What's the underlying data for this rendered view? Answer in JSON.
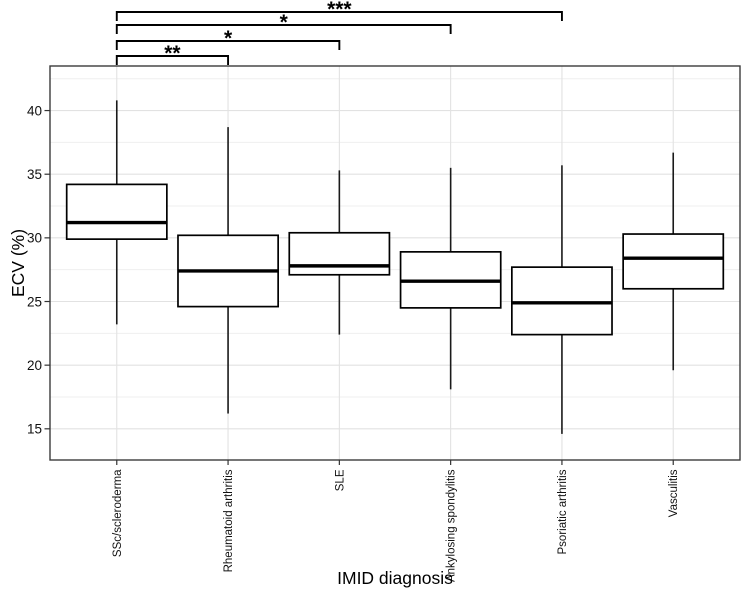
{
  "figure": {
    "background": "#ffffff"
  },
  "chart_data": {
    "type": "box",
    "title": "",
    "xlabel": "IMID diagnosis",
    "ylabel": "ECV (%)",
    "categories": [
      "SSc/scleroderma",
      "Rheumatoid arthritis",
      "SLE",
      "Ankylosing spondylitis",
      "Psoriatic arthritis",
      "Vasculitis"
    ],
    "yticks": [
      15,
      20,
      25,
      30,
      35,
      40
    ],
    "ylim": [
      12.55,
      43.5
    ],
    "minor_grid_step": 2.5,
    "grid": true,
    "legend": "none",
    "boxes": [
      {
        "category": "SSc/scleroderma",
        "whisker_low": 23.2,
        "q1": 29.9,
        "median": 31.2,
        "q3": 34.2,
        "whisker_high": 40.8
      },
      {
        "category": "Rheumatoid arthritis",
        "whisker_low": 16.2,
        "q1": 24.6,
        "median": 27.4,
        "q3": 30.2,
        "whisker_high": 38.7
      },
      {
        "category": "SLE",
        "whisker_low": 22.4,
        "q1": 27.1,
        "median": 27.8,
        "q3": 30.4,
        "whisker_high": 35.3
      },
      {
        "category": "Ankylosing spondylitis",
        "whisker_low": 18.1,
        "q1": 24.5,
        "median": 26.6,
        "q3": 28.9,
        "whisker_high": 35.5
      },
      {
        "category": "Psoriatic arthritis",
        "whisker_low": 14.6,
        "q1": 22.4,
        "median": 24.9,
        "q3": 27.7,
        "whisker_high": 35.7
      },
      {
        "category": "Vasculitis",
        "whisker_low": 19.6,
        "q1": 26.0,
        "median": 28.4,
        "q3": 30.3,
        "whisker_high": 36.7
      }
    ],
    "significance_brackets": [
      {
        "from": "SSc/scleroderma",
        "to": "Rheumatoid arthritis",
        "label": "**"
      },
      {
        "from": "SSc/scleroderma",
        "to": "SLE",
        "label": "*"
      },
      {
        "from": "SSc/scleroderma",
        "to": "Ankylosing spondylitis",
        "label": "*"
      },
      {
        "from": "SSc/scleroderma",
        "to": "Psoriatic arthritis",
        "label": "***"
      }
    ],
    "colors": {
      "box_stroke": "#000000",
      "box_fill": "#ffffff",
      "median": "#000000",
      "whisker": "#1a1a1a",
      "grid_major": "#e2e2e2",
      "grid_minor": "#efefef",
      "panel_border": "#3b3b3b",
      "tick": "#333333",
      "bracket": "#000000"
    }
  }
}
